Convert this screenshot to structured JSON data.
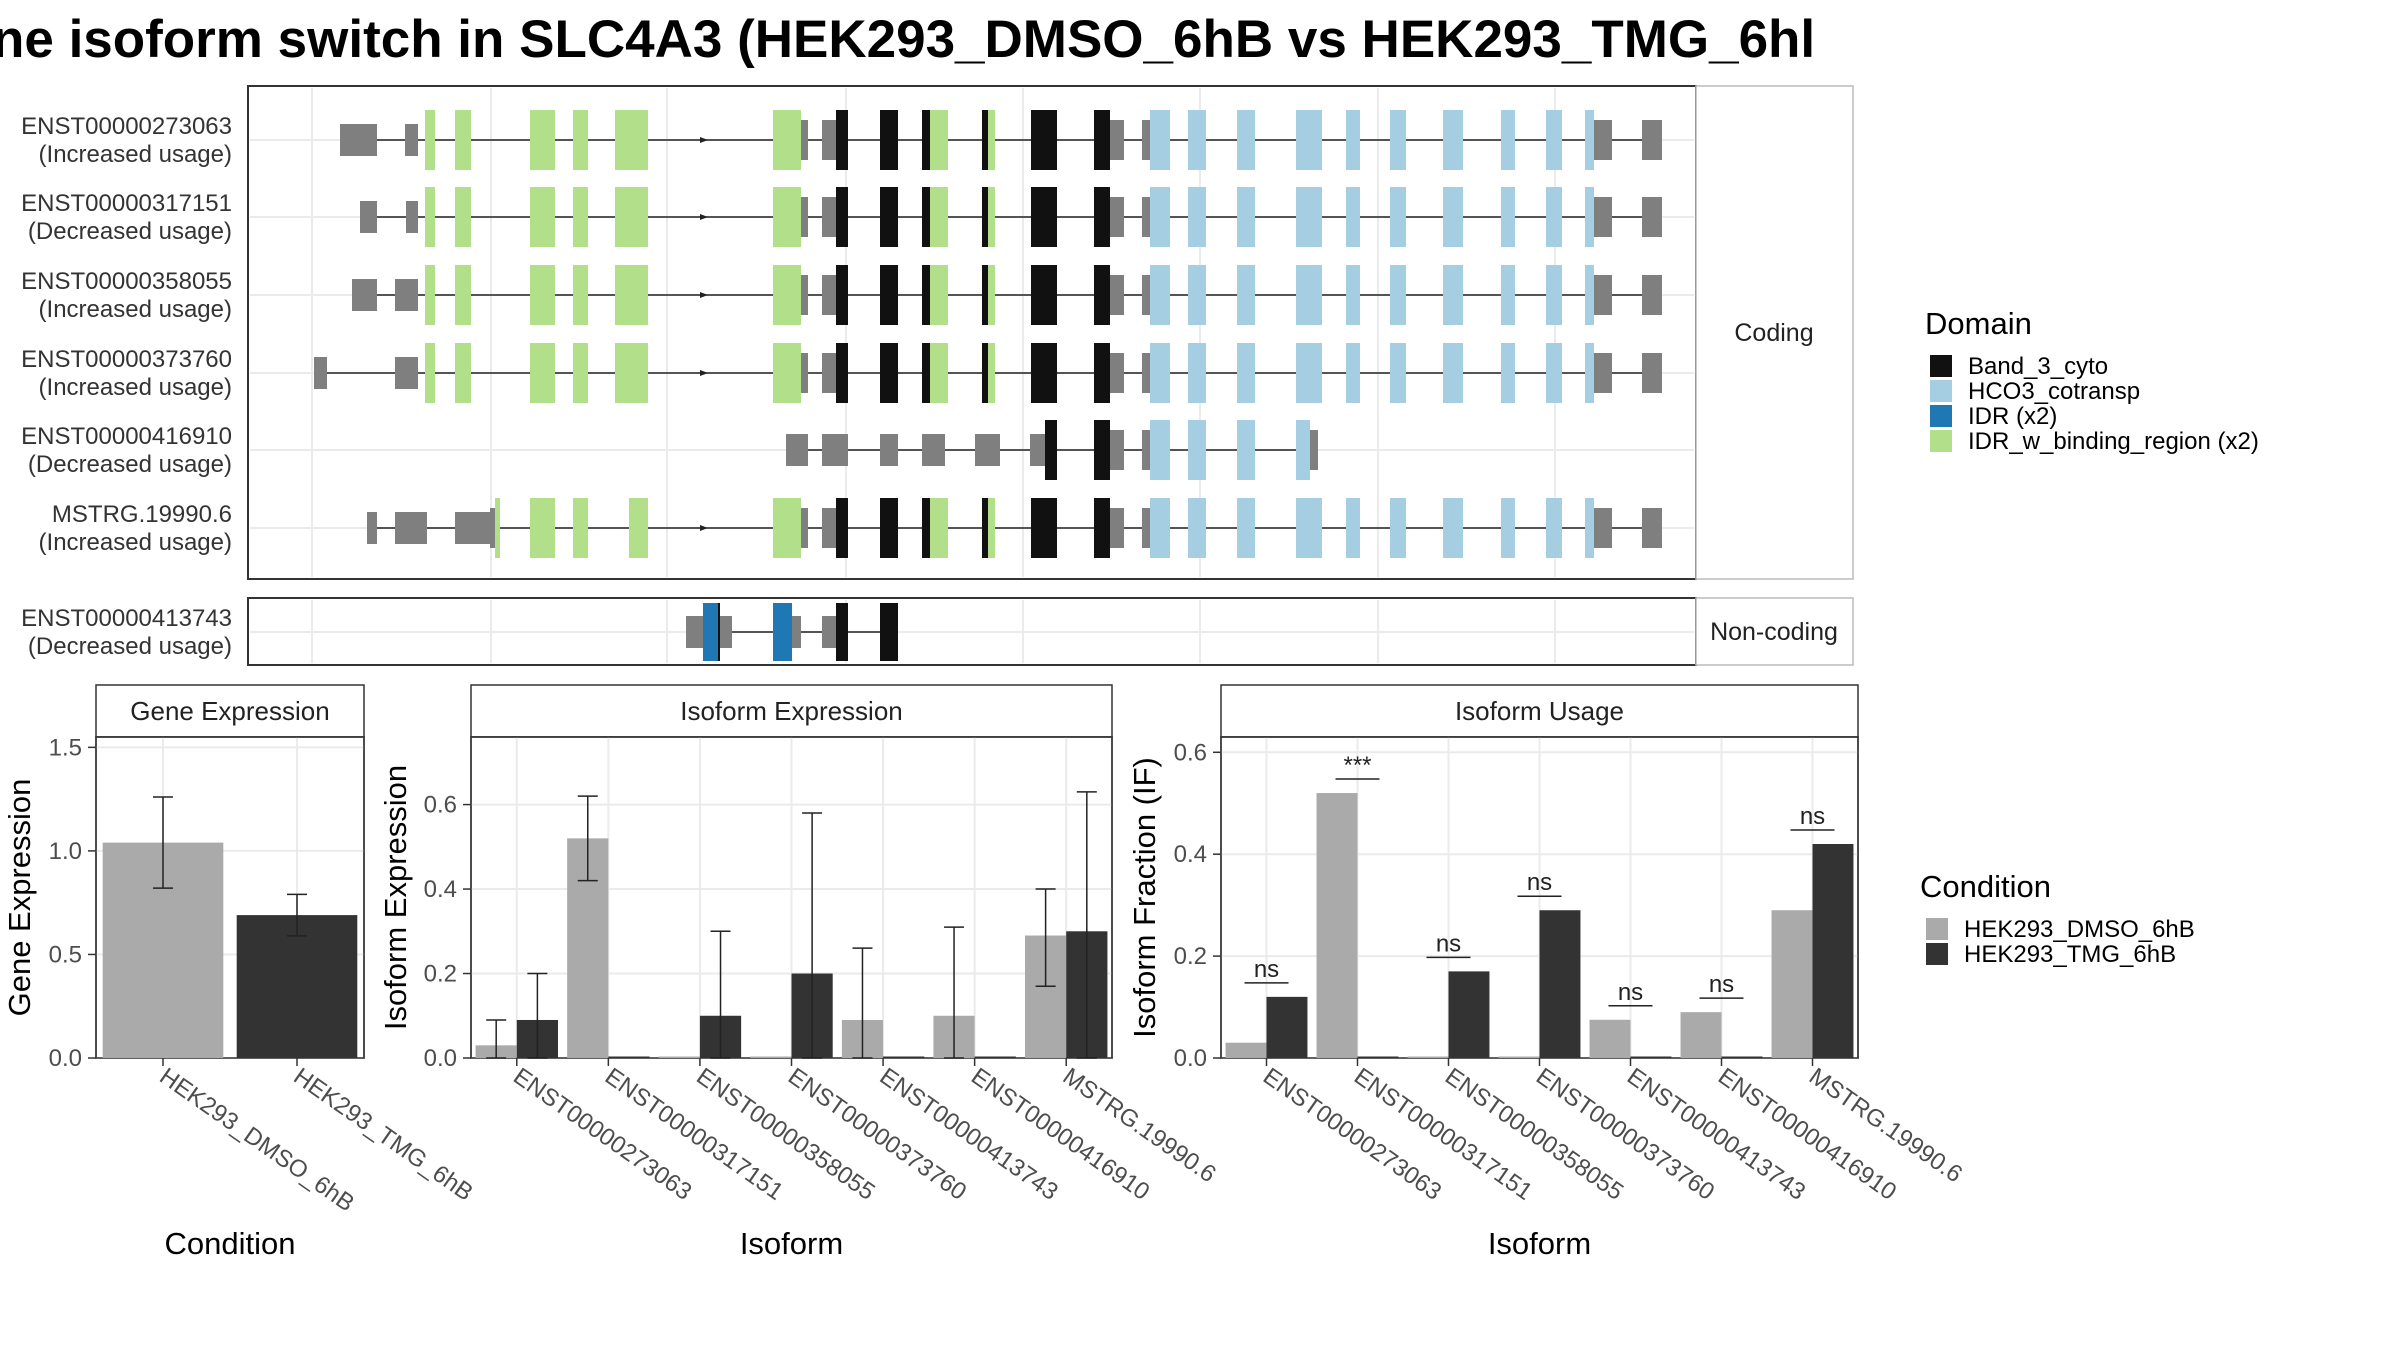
{
  "title": "ne isoform switch in SLC4A3 (HEK293_DMSO_6hB vs HEK293_TMG_6hl",
  "structure": {
    "coding_strip": "Coding",
    "noncoding_strip": "Non-coding",
    "isoforms": [
      {
        "id": "ENST00000273063",
        "usage": "(Increased usage)"
      },
      {
        "id": "ENST00000317151",
        "usage": "(Decreased usage)"
      },
      {
        "id": "ENST00000358055",
        "usage": "(Increased usage)"
      },
      {
        "id": "ENST00000373760",
        "usage": "(Increased usage)"
      },
      {
        "id": "ENST00000416910",
        "usage": "(Decreased usage)"
      },
      {
        "id": "MSTRG.19990.6",
        "usage": "(Increased usage)"
      },
      {
        "id": "ENST00000413743",
        "usage": "(Decreased usage)"
      }
    ]
  },
  "legend_domain": {
    "title": "Domain",
    "items": [
      {
        "label": "Band_3_cyto",
        "color": "#111111"
      },
      {
        "label": "HCO3_cotransp",
        "color": "#a6cee3"
      },
      {
        "label": "IDR (x2)",
        "color": "#1f78b4"
      },
      {
        "label": "IDR_w_binding_region (x2)",
        "color": "#b2df8a"
      }
    ]
  },
  "legend_condition": {
    "title": "Condition",
    "items": [
      {
        "label": "HEK293_DMSO_6hB",
        "color": "#aaaaaa"
      },
      {
        "label": "HEK293_TMG_6hB",
        "color": "#333333"
      }
    ]
  },
  "chart_data": [
    {
      "type": "bar",
      "title": "Gene Expression",
      "xlabel": "Condition",
      "ylabel": "Gene Expression",
      "ylim": [
        0,
        1.55
      ],
      "yticks": [
        "0.0",
        "0.5",
        "1.0",
        "1.5"
      ],
      "categories": [
        "HEK293_DMSO_6hB",
        "HEK293_TMG_6hB"
      ],
      "values": [
        1.04,
        0.69
      ],
      "err_low": [
        0.82,
        0.59
      ],
      "err_high": [
        1.26,
        0.79
      ]
    },
    {
      "type": "bar",
      "title": "Isoform Expression",
      "xlabel": "Isoform",
      "ylabel": "Isoform Expression",
      "ylim": [
        0,
        0.76
      ],
      "yticks": [
        "0.0",
        "0.2",
        "0.4",
        "0.6"
      ],
      "categories": [
        "ENST00000273063",
        "ENST00000317151",
        "ENST00000358055",
        "ENST00000373760",
        "ENST00000413743",
        "ENST00000416910",
        "MSTRG.19990.6"
      ],
      "series": [
        {
          "name": "HEK293_DMSO_6hB",
          "values": [
            0.03,
            0.52,
            0.0,
            0.0,
            0.09,
            0.1,
            0.29
          ],
          "err_low": [
            0.0,
            0.42,
            0.0,
            0.0,
            0.0,
            0.0,
            0.17
          ],
          "err_high": [
            0.09,
            0.62,
            0.0,
            0.0,
            0.26,
            0.31,
            0.4
          ]
        },
        {
          "name": "HEK293_TMG_6hB",
          "values": [
            0.09,
            0.0,
            0.1,
            0.2,
            0.0,
            0.0,
            0.3
          ],
          "err_low": [
            0.0,
            0.0,
            0.0,
            0.0,
            0.0,
            0.0,
            0.0
          ],
          "err_high": [
            0.2,
            0.0,
            0.3,
            0.58,
            0.0,
            0.0,
            0.63
          ]
        }
      ]
    },
    {
      "type": "bar",
      "title": "Isoform Usage",
      "xlabel": "Isoform",
      "ylabel": "Isoform Fraction (IF)",
      "ylim": [
        0,
        0.63
      ],
      "yticks": [
        "0.0",
        "0.2",
        "0.4",
        "0.6"
      ],
      "categories": [
        "ENST00000273063",
        "ENST00000317151",
        "ENST00000358055",
        "ENST00000373760",
        "ENST00000413743",
        "ENST00000416910",
        "MSTRG.19990.6"
      ],
      "series": [
        {
          "name": "HEK293_DMSO_6hB",
          "values": [
            0.03,
            0.52,
            0.0,
            0.0,
            0.075,
            0.09,
            0.29
          ]
        },
        {
          "name": "HEK293_TMG_6hB",
          "values": [
            0.12,
            0.0,
            0.17,
            0.29,
            0.0,
            0.0,
            0.42
          ]
        }
      ],
      "significance": [
        "ns",
        "***",
        "ns",
        "ns",
        "ns",
        "ns",
        "ns"
      ]
    }
  ]
}
